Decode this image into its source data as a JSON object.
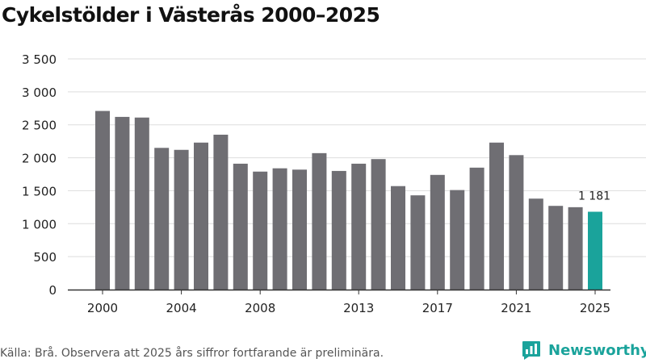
{
  "header": {
    "title": "Cykelstölder i Västerås 2000–2025"
  },
  "footer": {
    "source": "Källa: Brå. Observera att 2025 års siffror fortfarande är preliminära.",
    "brand": "Newsworthy"
  },
  "colors": {
    "bar": "#6f6e73",
    "highlight": "#1aa39b",
    "grid": "#dddddd",
    "axis": "#333333",
    "text": "#222222"
  },
  "chart_data": {
    "type": "bar",
    "title": "Cykelstölder i Västerås 2000–2025",
    "xlabel": "",
    "ylabel": "",
    "categories": [
      "2000",
      "2001",
      "2002",
      "2003",
      "2004",
      "2005",
      "2006",
      "2007",
      "2008",
      "2009",
      "2010",
      "2011",
      "2012",
      "2013",
      "2014",
      "2015",
      "2016",
      "2017",
      "2018",
      "2019",
      "2020",
      "2021",
      "2022",
      "2023",
      "2024",
      "2025"
    ],
    "values": [
      2710,
      2620,
      2610,
      2150,
      2120,
      2230,
      2350,
      1910,
      1790,
      1840,
      1820,
      2070,
      1800,
      1910,
      1980,
      1570,
      1430,
      1740,
      1510,
      1850,
      2230,
      2040,
      1380,
      1270,
      1250,
      1181
    ],
    "highlight_index": 25,
    "data_labels": [
      {
        "index": 25,
        "text": "1 181"
      }
    ],
    "x_tick_labels": [
      "2000",
      "2004",
      "2008",
      "2013",
      "2017",
      "2021",
      "2025"
    ],
    "y_ticks": [
      0,
      500,
      1000,
      1500,
      2000,
      2500,
      3000,
      3500
    ],
    "y_tick_labels": [
      "0",
      "500",
      "1 000",
      "1 500",
      "2 000",
      "2 500",
      "3 000",
      "3 500"
    ],
    "ylim": [
      0,
      3500
    ],
    "grid": true
  }
}
